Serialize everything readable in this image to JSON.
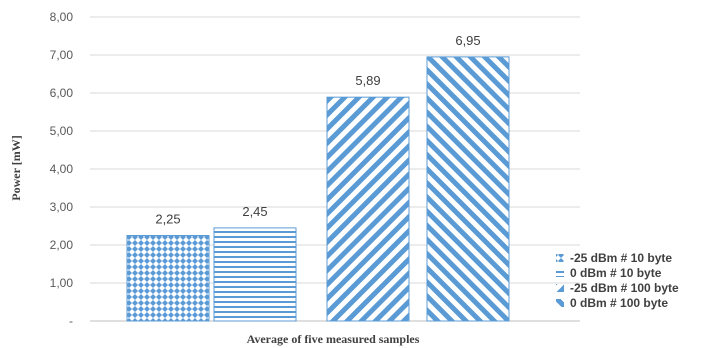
{
  "chart_data": {
    "type": "bar",
    "xlabel": "Average of five  measured samples",
    "ylabel": "Power [mW]",
    "ylim": [
      0,
      8
    ],
    "yticks": [
      "-",
      "1,00",
      "2,00",
      "3,00",
      "4,00",
      "5,00",
      "6,00",
      "7,00",
      "8,00"
    ],
    "grid": true,
    "legend_position": "right-bottom",
    "series": [
      {
        "name": "-25 dBm # 10 byte",
        "value": 2.25,
        "label": "2,25",
        "pattern": "dots"
      },
      {
        "name": "0 dBm # 10 byte",
        "value": 2.45,
        "label": "2,45",
        "pattern": "horizontal"
      },
      {
        "name": "-25 dBm # 100 byte",
        "value": 5.89,
        "label": "5,89",
        "pattern": "diag-up"
      },
      {
        "name": "0 dBm # 100 byte",
        "value": 6.95,
        "label": "6,95",
        "pattern": "diag-down"
      }
    ],
    "colors": {
      "bar": "#5b9bd5",
      "grid": "#d9d9d9",
      "axis": "#bfbfbf"
    }
  }
}
